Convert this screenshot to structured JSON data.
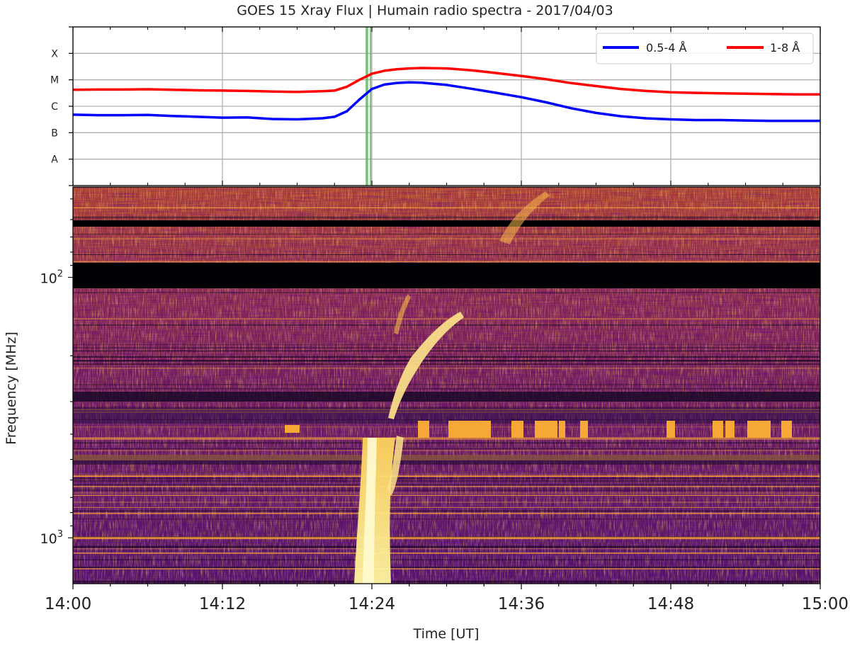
{
  "title": "GOES 15 Xray Flux | Humain radio spectra - 2017/04/03",
  "chart_data": [
    {
      "type": "line",
      "panel": "xray",
      "x_unit": "minutes after 14:00 UT",
      "ylabel": "",
      "y_scale": "log",
      "y_tick_labels": [
        "A",
        "B",
        "C",
        "M",
        "X"
      ],
      "y_tick_values": [
        1e-08,
        1e-07,
        1e-06,
        1e-05,
        0.0001
      ],
      "ylim": [
        1e-09,
        0.001
      ],
      "grid": true,
      "legend_position": "top-right",
      "vertical_markers": [
        {
          "x": 23.6,
          "color": "#5cb85c"
        },
        {
          "x": 23.9,
          "color": "#5cb85c"
        }
      ],
      "series": [
        {
          "name": "0.5-4 Å",
          "color": "#0000ff",
          "x": [
            0,
            2,
            4,
            6,
            8,
            10,
            12,
            14,
            16,
            18,
            20,
            21,
            22,
            23,
            24,
            25,
            26,
            27,
            28,
            30,
            32,
            34,
            36,
            38,
            40,
            42,
            44,
            46,
            48,
            50,
            52,
            54,
            56,
            58,
            60
          ],
          "values": [
            4.8e-07,
            4.6e-07,
            4.6e-07,
            4.7e-07,
            4.3e-07,
            4e-07,
            3.7e-07,
            3.8e-07,
            3.3e-07,
            3.2e-07,
            3.5e-07,
            4e-07,
            6.5e-07,
            1.8e-06,
            4.5e-06,
            6.6e-06,
            7.6e-06,
            8e-06,
            7.8e-06,
            6.4e-06,
            4.6e-06,
            3.2e-06,
            2.2e-06,
            1.4e-06,
            8.4e-07,
            5.6e-07,
            4.2e-07,
            3.5e-07,
            3.2e-07,
            3e-07,
            3e-07,
            2.9e-07,
            2.8e-07,
            2.8e-07,
            2.8e-07
          ]
        },
        {
          "name": "1-8 Å",
          "color": "#ff0000",
          "x": [
            0,
            2,
            4,
            6,
            8,
            10,
            12,
            14,
            16,
            18,
            20,
            21,
            22,
            23,
            24,
            25,
            26,
            27,
            28,
            30,
            32,
            34,
            36,
            38,
            40,
            42,
            44,
            46,
            48,
            50,
            52,
            54,
            56,
            58,
            60
          ],
          "values": [
            4.2e-06,
            4.3e-06,
            4.3e-06,
            4.4e-06,
            4.2e-06,
            4e-06,
            3.9e-06,
            3.8e-06,
            3.6e-06,
            3.5e-06,
            3.7e-06,
            3.9e-06,
            5.5e-06,
            1e-05,
            1.7e-05,
            2.2e-05,
            2.5e-05,
            2.7e-05,
            2.8e-05,
            2.7e-05,
            2.3e-05,
            1.8e-05,
            1.4e-05,
            1.05e-05,
            7.5e-06,
            5.8e-06,
            4.5e-06,
            3.8e-06,
            3.4e-06,
            3.2e-06,
            3.1e-06,
            3e-06,
            2.9e-06,
            2.8e-06,
            2.8e-06
          ]
        }
      ]
    },
    {
      "type": "heatmap",
      "panel": "radio-spectrogram",
      "ylabel": "Frequency [MHz]",
      "xlabel": "Time [UT]",
      "y_scale": "log",
      "y_inverted": true,
      "ylim": [
        45,
        1500
      ],
      "y_ticks": [
        {
          "label": "10",
          "exp": "2",
          "value": 100
        },
        {
          "label": "10",
          "exp": "3",
          "value": 1000
        }
      ],
      "x_ticks": [
        "14:00",
        "14:12",
        "14:24",
        "14:36",
        "14:48",
        "15:00"
      ],
      "x_tick_minutes": [
        0,
        12,
        24,
        36,
        48,
        60
      ],
      "colormap": "inferno",
      "features": [
        {
          "kind": "data-gap",
          "freq_range": [
            52,
            55
          ]
        },
        {
          "kind": "data-gap",
          "freq_range": [
            82,
            105
          ]
        },
        {
          "kind": "type-III-burst",
          "time_minutes": [
            24,
            30
          ],
          "freq_range": [
            95,
            1500
          ]
        },
        {
          "kind": "drifting-burst",
          "time_minutes": [
            25,
            31
          ],
          "freq_range": [
            120,
            330
          ]
        }
      ]
    }
  ]
}
